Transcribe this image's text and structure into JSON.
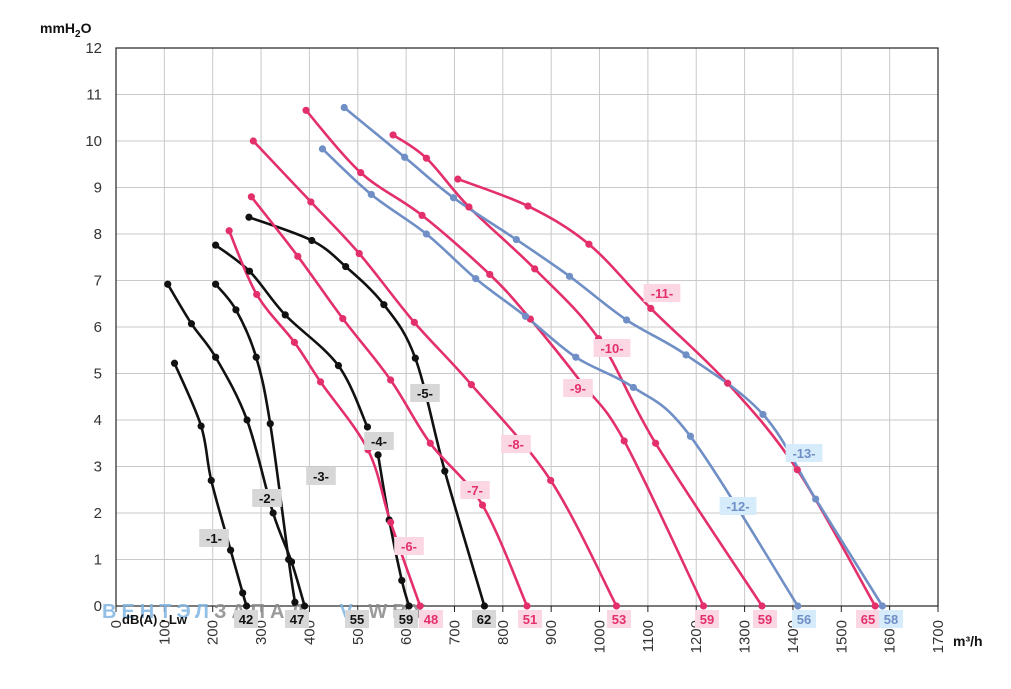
{
  "chart_data": {
    "type": "line",
    "ylabel": "mmH2O",
    "ylabel_main": "mmH",
    "ylabel_sub": "2",
    "ylabel_end": "O",
    "xlabel": "m³/h",
    "xlim": [
      0,
      1700
    ],
    "ylim": [
      0,
      12
    ],
    "x_ticks": [
      "0",
      "100",
      "200",
      "300",
      "400",
      "500",
      "600",
      "700",
      "800",
      "900",
      "1000",
      "1100",
      "1200",
      "1300",
      "1400",
      "1500",
      "1600",
      "1700"
    ],
    "y_ticks": [
      "0",
      "1",
      "2",
      "3",
      "4",
      "5",
      "6",
      "7",
      "8",
      "9",
      "10",
      "11",
      "12"
    ],
    "grid": true,
    "noise_label": "dB(A) - Lw",
    "watermark": {
      "part1": "ВЕНТЭЛ",
      "part2": "ЗАПАД",
      "part3": "V",
      "part4": "-WBY"
    },
    "colors": {
      "black": "#111111",
      "pink": "#e3306b",
      "blue": "#6f8fc6"
    },
    "series": [
      {
        "name": "-1-",
        "color": "black",
        "db": "42",
        "points": [
          [
            121,
            5.22
          ],
          [
            176,
            3.87
          ],
          [
            197,
            2.7
          ],
          [
            237,
            1.2
          ],
          [
            262,
            0.28
          ],
          [
            270,
            0.0
          ]
        ]
      },
      {
        "name": "-2-",
        "color": "black",
        "db": "47",
        "points": [
          [
            206,
            6.92
          ],
          [
            248,
            6.37
          ],
          [
            290,
            5.35
          ],
          [
            319,
            3.92
          ],
          [
            357,
            1.0
          ],
          [
            370,
            0.08
          ]
        ]
      },
      {
        "name": "-3-",
        "color": "black",
        "db": "55",
        "points": [
          [
            107,
            6.92
          ],
          [
            156,
            6.07
          ],
          [
            206,
            5.35
          ],
          [
            271,
            4.0
          ],
          [
            325,
            2.0
          ],
          [
            363,
            0.95
          ],
          [
            390,
            0.0
          ]
        ]
      },
      {
        "name": "-4-",
        "color": "black",
        "db": "59",
        "points": [
          [
            206,
            7.76
          ],
          [
            276,
            7.2
          ],
          [
            350,
            6.26
          ],
          [
            460,
            5.17
          ],
          [
            520,
            3.85
          ]
        ]
      },
      {
        "name": "-4-b",
        "color": "black",
        "db": "",
        "points": [
          [
            542,
            3.25
          ],
          [
            565,
            1.85
          ],
          [
            591,
            0.55
          ],
          [
            606,
            0.0
          ]
        ]
      },
      {
        "name": "-5-",
        "color": "black",
        "db": "62",
        "points": [
          [
            275,
            8.36
          ],
          [
            405,
            7.86
          ],
          [
            475,
            7.3
          ],
          [
            554,
            6.48
          ],
          [
            619,
            5.33
          ],
          [
            680,
            2.9
          ],
          [
            762,
            0.0
          ]
        ]
      },
      {
        "name": "-6-",
        "color": "pink",
        "db": "48",
        "points": [
          [
            234,
            8.07
          ],
          [
            291,
            6.7
          ],
          [
            369,
            5.67
          ],
          [
            423,
            4.82
          ],
          [
            521,
            3.36
          ],
          [
            568,
            1.8
          ],
          [
            629,
            0.0
          ]
        ]
      },
      {
        "name": "-7-",
        "color": "pink",
        "db": "51",
        "points": [
          [
            280,
            8.8
          ],
          [
            376,
            7.52
          ],
          [
            469,
            6.18
          ],
          [
            568,
            4.86
          ],
          [
            650,
            3.5
          ],
          [
            758,
            2.17
          ],
          [
            850,
            0.0
          ]
        ]
      },
      {
        "name": "-8-",
        "color": "pink",
        "db": "53",
        "points": [
          [
            284,
            10.0
          ],
          [
            403,
            8.69
          ],
          [
            503,
            7.58
          ],
          [
            617,
            6.1
          ],
          [
            735,
            4.76
          ],
          [
            899,
            2.7
          ],
          [
            1035,
            0.0
          ]
        ]
      },
      {
        "name": "-9-",
        "color": "pink",
        "db": "59",
        "points": [
          [
            393,
            10.66
          ],
          [
            506,
            9.32
          ],
          [
            633,
            8.4
          ],
          [
            773,
            7.13
          ],
          [
            857,
            6.17
          ],
          [
            963,
            4.8
          ],
          [
            1051,
            3.55
          ],
          [
            1215,
            0.0
          ]
        ]
      },
      {
        "name": "-10-",
        "color": "pink",
        "db": "59",
        "points": [
          [
            573,
            10.13
          ],
          [
            642,
            9.63
          ],
          [
            730,
            8.58
          ],
          [
            866,
            7.25
          ],
          [
            998,
            5.75
          ],
          [
            1116,
            3.5
          ],
          [
            1336,
            0.0
          ]
        ]
      },
      {
        "name": "-11-",
        "color": "pink",
        "db": "65",
        "points": [
          [
            707,
            9.18
          ],
          [
            852,
            8.6
          ],
          [
            978,
            7.78
          ],
          [
            1106,
            6.4
          ],
          [
            1265,
            4.79
          ],
          [
            1409,
            2.93
          ],
          [
            1570,
            0.0
          ]
        ]
      },
      {
        "name": "-12-",
        "color": "blue",
        "db": "56",
        "points": [
          [
            427,
            9.83
          ],
          [
            528,
            8.85
          ],
          [
            642,
            8.0
          ],
          [
            744,
            7.04
          ],
          [
            847,
            6.23
          ],
          [
            951,
            5.35
          ],
          [
            1070,
            4.7
          ],
          [
            1188,
            3.65
          ],
          [
            1410,
            0.0
          ]
        ]
      },
      {
        "name": "-13-",
        "color": "blue",
        "db": "58",
        "points": [
          [
            472,
            10.72
          ],
          [
            597,
            9.65
          ],
          [
            698,
            8.78
          ],
          [
            828,
            7.88
          ],
          [
            938,
            7.09
          ],
          [
            1056,
            6.15
          ],
          [
            1179,
            5.4
          ],
          [
            1338,
            4.12
          ],
          [
            1447,
            2.3
          ],
          [
            1585,
            0.0
          ]
        ]
      }
    ]
  }
}
